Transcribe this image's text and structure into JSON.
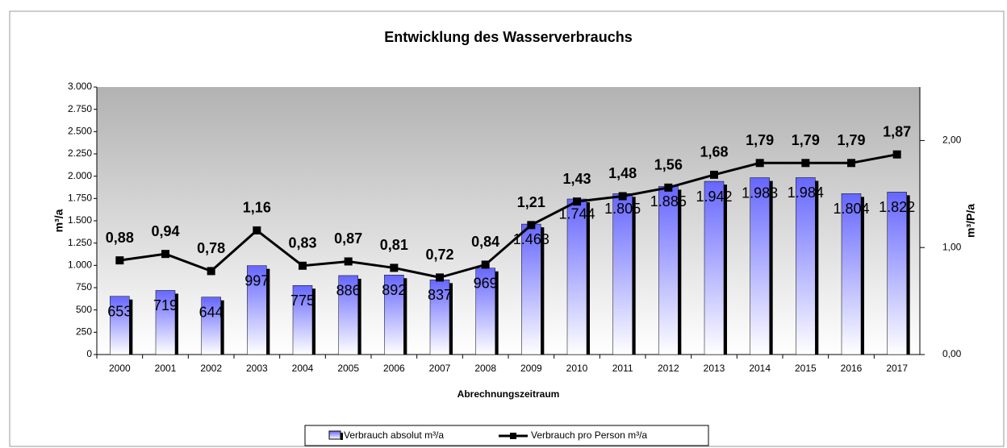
{
  "chart_data": {
    "type": "bar",
    "title": "Entwicklung des Wasserverbrauchs",
    "x_label": "Abrechnungszeitraum",
    "y_label": "m³/a",
    "y2_label": "m³/P/a",
    "categories": [
      "2000",
      "2001",
      "2002",
      "2003",
      "2004",
      "2005",
      "2006",
      "2007",
      "2008",
      "2009",
      "2010",
      "2011",
      "2012",
      "2013",
      "2014",
      "2015",
      "2016",
      "2017"
    ],
    "series": [
      {
        "name": "Verbrauch absolut m³/a",
        "color": "#6666ff",
        "type": "bar",
        "values": [
          653,
          719,
          644,
          997,
          775,
          886,
          892,
          837,
          969,
          1463,
          1744,
          1805,
          1885,
          1942,
          1983,
          1984,
          1804,
          1822
        ],
        "value_labels": [
          "653",
          "719",
          "644",
          "997",
          "775",
          "886",
          "892",
          "837",
          "969",
          "1.463",
          "1.744",
          "1.805",
          "1.885",
          "1.942",
          "1.983",
          "1.984",
          "1.804",
          "1.822"
        ]
      },
      {
        "name": "Verbrauch pro Person m³/a",
        "color": "#000000",
        "type": "line",
        "axis": "y2",
        "values": [
          0.88,
          0.94,
          0.78,
          1.16,
          0.83,
          0.87,
          0.81,
          0.72,
          0.84,
          1.21,
          1.43,
          1.48,
          1.56,
          1.68,
          1.79,
          1.79,
          1.79,
          1.87
        ],
        "value_labels": [
          "0,88",
          "0,94",
          "0,78",
          "1,16",
          "0,83",
          "0,87",
          "0,81",
          "0,72",
          "0,84",
          "1,21",
          "1,43",
          "1,48",
          "1,56",
          "1,68",
          "1,79",
          "1,79",
          "1,79",
          "1,87"
        ]
      }
    ],
    "ylim": [
      0,
      3000
    ],
    "yticks": [
      0,
      250,
      500,
      750,
      {
        "value": 1000,
        "label": "1.000"
      },
      {
        "value": 1250,
        "label": "1.250"
      },
      {
        "value": 1500,
        "label": "1.500"
      },
      {
        "value": 1750,
        "label": "1.750"
      },
      {
        "value": 2000,
        "label": "2.000"
      },
      {
        "value": 2250,
        "label": "2.250"
      },
      {
        "value": 2500,
        "label": "2.500"
      },
      {
        "value": 2750,
        "label": "2.750"
      },
      {
        "value": 3000,
        "label": "3.000"
      }
    ],
    "y2lim": [
      0,
      2.5
    ],
    "y2ticks": [
      {
        "value": 0,
        "label": "0,00"
      },
      {
        "value": 1,
        "label": "1,00"
      },
      {
        "value": 2,
        "label": "2,00"
      }
    ],
    "grid": false,
    "legend": "bottom"
  }
}
